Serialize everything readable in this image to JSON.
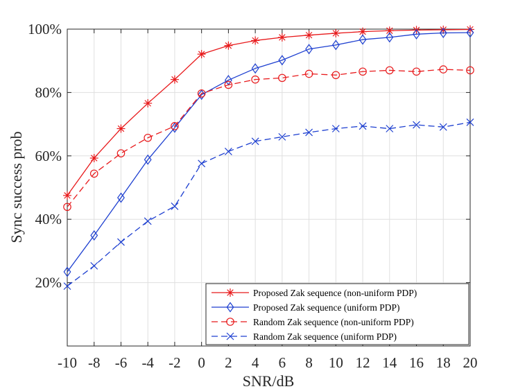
{
  "chart_data": {
    "type": "line",
    "title": "",
    "xlabel": "SNR/dB",
    "ylabel": "Sync success prob",
    "xlim": [
      -10,
      20
    ],
    "ylim": [
      0,
      100
    ],
    "x": [
      -10,
      -8,
      -6,
      -4,
      -2,
      0,
      2,
      4,
      6,
      8,
      10,
      12,
      14,
      16,
      18,
      20
    ],
    "x_tick_labels": [
      "-10",
      "-8",
      "-6",
      "-4",
      "-2",
      "0",
      "2",
      "4",
      "6",
      "8",
      "10",
      "12",
      "14",
      "16",
      "18",
      "20"
    ],
    "y_ticks": [
      20,
      40,
      60,
      80,
      100
    ],
    "y_tick_labels": [
      "20%",
      "40%",
      "60%",
      "80%",
      "100%"
    ],
    "grid": true,
    "legend_position": "bottom-right",
    "series": [
      {
        "name": "Proposed Zak sequence (non-uniform PDP)",
        "color": "#e8191b",
        "line_style": "solid",
        "marker": "asterisk",
        "values": [
          47.5,
          59.3,
          68.6,
          76.6,
          84.1,
          92.1,
          94.8,
          96.4,
          97.4,
          98.1,
          98.7,
          99.2,
          99.5,
          99.7,
          99.8,
          99.9
        ]
      },
      {
        "name": "Proposed Zak sequence (uniform PDP)",
        "color": "#1d3fd0",
        "line_style": "solid",
        "marker": "diamond",
        "values": [
          23.4,
          34.9,
          46.8,
          58.8,
          68.9,
          79.3,
          83.9,
          87.6,
          90.2,
          93.7,
          95.0,
          96.7,
          97.4,
          98.4,
          98.8,
          98.9
        ]
      },
      {
        "name": "Random Zak sequence (non-uniform PDP)",
        "color": "#e8191b",
        "line_style": "dashed",
        "marker": "circle",
        "values": [
          43.9,
          54.4,
          60.8,
          65.7,
          69.4,
          79.7,
          82.4,
          84.1,
          84.6,
          85.9,
          85.5,
          86.6,
          87.0,
          86.6,
          87.3,
          87.0
        ]
      },
      {
        "name": "Random Zak sequence (uniform PDP)",
        "color": "#1d3fd0",
        "line_style": "dashed",
        "marker": "x",
        "values": [
          18.9,
          25.3,
          32.8,
          39.4,
          44.1,
          57.6,
          61.4,
          64.6,
          66.0,
          67.4,
          68.6,
          69.4,
          68.6,
          69.8,
          69.1,
          70.6
        ]
      }
    ]
  }
}
